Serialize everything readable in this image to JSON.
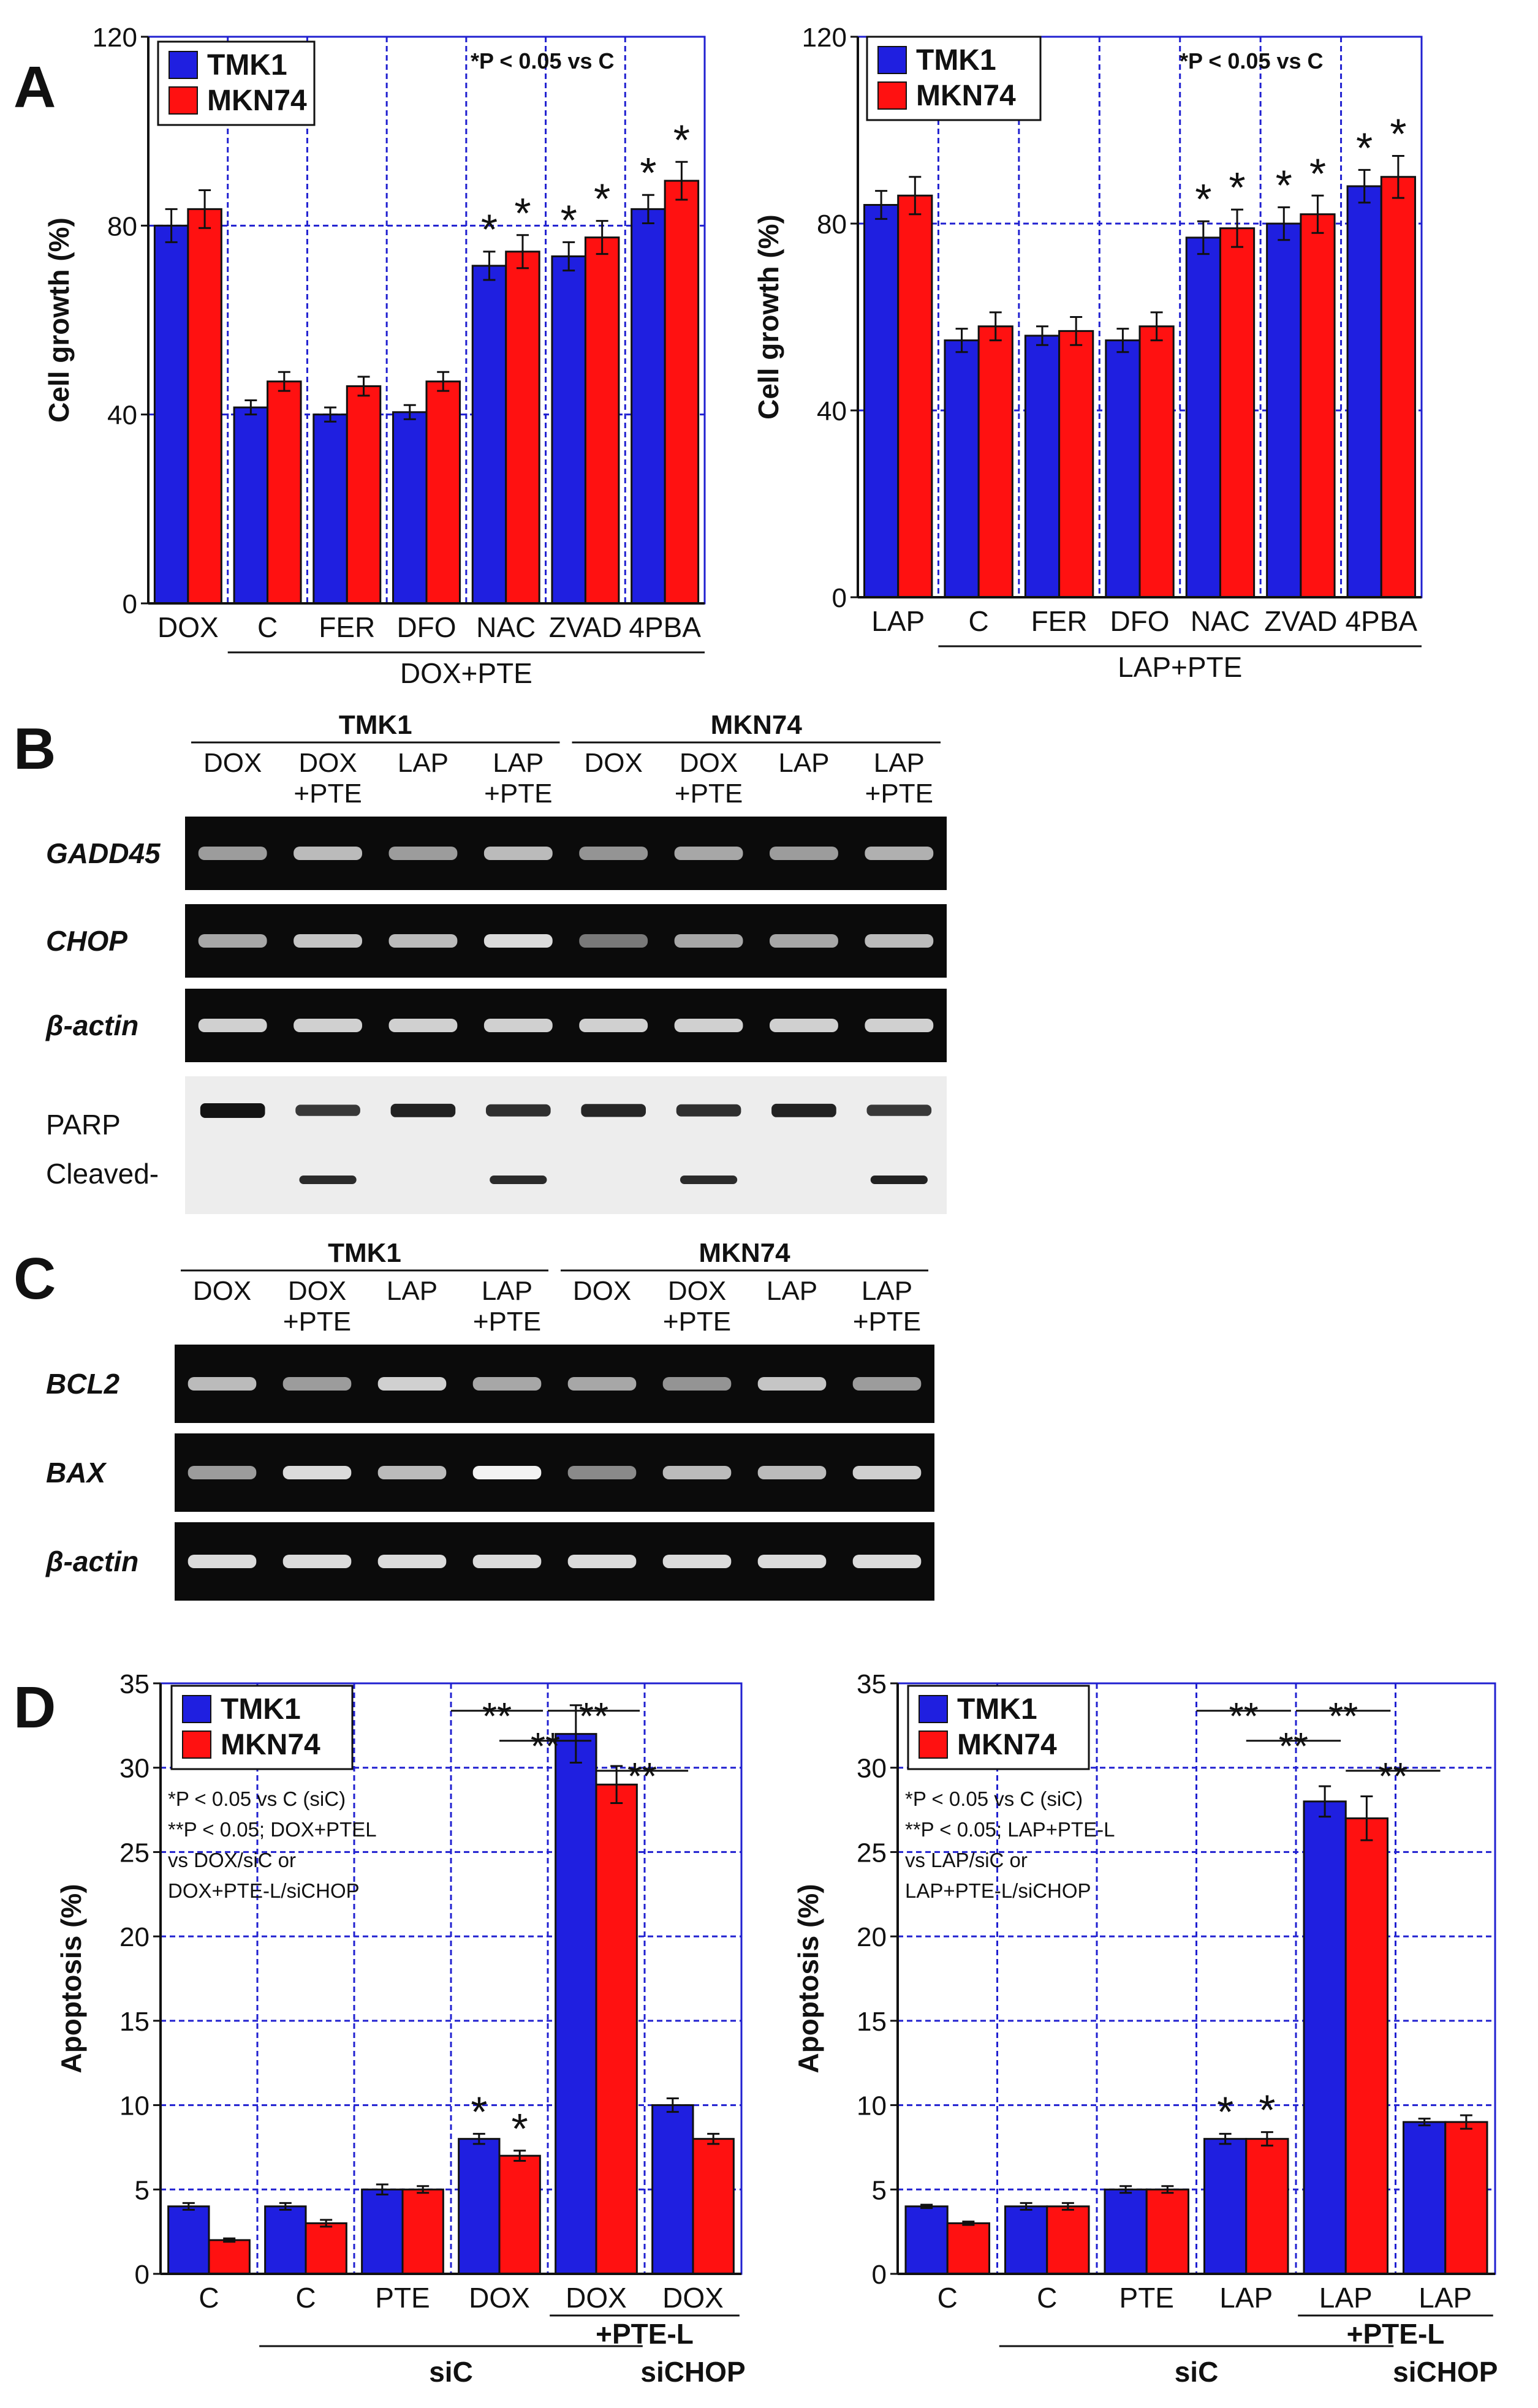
{
  "panel_letters": {
    "a": "A",
    "b": "B",
    "c": "C",
    "d": "D"
  },
  "colors": {
    "series1": "#1f1fe0",
    "series2": "#ff1111",
    "grid": "#2020d0",
    "gel_dark": "#0b0b0b",
    "gel_light": "#ededed"
  },
  "chart_data": [
    {
      "type": "bar",
      "panel": "A",
      "ylabel": "Cell growth (%)",
      "ylim": [
        0,
        120
      ],
      "yticks": [
        "0",
        "40",
        "80",
        "120"
      ],
      "categories": [
        "DOX",
        "C",
        "FER",
        "DFO",
        "NAC",
        "ZVAD",
        "4PBA"
      ],
      "series": [
        {
          "name": "TMK1",
          "values": [
            80,
            41.5,
            40,
            40.5,
            71.5,
            73.5,
            83.5
          ],
          "errors": [
            3.5,
            1.5,
            1.5,
            1.5,
            3,
            3,
            3
          ]
        },
        {
          "name": "MKN74",
          "values": [
            83.5,
            47,
            46,
            47,
            74.5,
            77.5,
            89.5
          ],
          "errors": [
            4,
            2,
            2,
            2,
            3.5,
            3.5,
            4
          ]
        }
      ],
      "significance": [
        "",
        "",
        "",
        "",
        "*",
        "*",
        "*"
      ],
      "legend": "top-left",
      "note": "*P < 0.05 vs C",
      "group_label": "DOX+PTE"
    },
    {
      "type": "bar",
      "panel": "A",
      "ylabel": "Cell growth (%)",
      "ylim": [
        0,
        120
      ],
      "yticks": [
        "0",
        "40",
        "80",
        "120"
      ],
      "categories": [
        "LAP",
        "C",
        "FER",
        "DFO",
        "NAC",
        "ZVAD",
        "4PBA"
      ],
      "series": [
        {
          "name": "TMK1",
          "values": [
            84,
            55,
            56,
            55,
            77,
            80,
            88
          ],
          "errors": [
            3,
            2.5,
            2,
            2.5,
            3.5,
            3.5,
            3.5
          ]
        },
        {
          "name": "MKN74",
          "values": [
            86,
            58,
            57,
            58,
            79,
            82,
            90
          ],
          "errors": [
            4,
            3,
            3,
            3,
            4,
            4,
            4.5
          ]
        }
      ],
      "significance": [
        "",
        "",
        "",
        "",
        "*",
        "*",
        "*"
      ],
      "legend": "top-left",
      "note": "*P < 0.05 vs C",
      "group_label": "LAP+PTE"
    },
    {
      "type": "bar",
      "panel": "D",
      "ylabel": "Apoptosis (%)",
      "ylim": [
        0,
        35
      ],
      "yticks": [
        "0",
        "5",
        "10",
        "15",
        "20",
        "25",
        "30",
        "35"
      ],
      "categories": [
        "C",
        "C",
        "PTE",
        "DOX",
        "DOX",
        "DOX"
      ],
      "series": [
        {
          "name": "TMK1",
          "values": [
            4,
            4,
            5,
            8,
            32,
            10
          ],
          "errors": [
            0.2,
            0.2,
            0.3,
            0.3,
            1.7,
            0.4
          ]
        },
        {
          "name": "MKN74",
          "values": [
            2,
            3,
            5,
            7,
            29,
            8
          ],
          "errors": [
            0.1,
            0.2,
            0.2,
            0.3,
            1.1,
            0.3
          ]
        }
      ],
      "significance": [
        "",
        "",
        "",
        "*",
        "",
        ""
      ],
      "legend": "top-left",
      "notes": [
        "*P < 0.05 vs C (siC)",
        "**P < 0.05; DOX+PTEL",
        "vs DOX/siC or",
        "DOX+PTE-L/siCHOP"
      ],
      "brackets_label": "**",
      "group_label_ptel": "+PTE-L",
      "group_label_sic": "siC",
      "group_label_sichop": "siCHOP"
    },
    {
      "type": "bar",
      "panel": "D",
      "ylabel": "Apoptosis (%)",
      "ylim": [
        0,
        35
      ],
      "yticks": [
        "0",
        "5",
        "10",
        "15",
        "20",
        "25",
        "30",
        "35"
      ],
      "categories": [
        "C",
        "C",
        "PTE",
        "LAP",
        "LAP",
        "LAP"
      ],
      "series": [
        {
          "name": "TMK1",
          "values": [
            4,
            4,
            5,
            8,
            28,
            9
          ],
          "errors": [
            0.1,
            0.2,
            0.2,
            0.3,
            0.9,
            0.2
          ]
        },
        {
          "name": "MKN74",
          "values": [
            3,
            4,
            5,
            8,
            27,
            9
          ],
          "errors": [
            0.1,
            0.2,
            0.2,
            0.4,
            1.3,
            0.4
          ]
        }
      ],
      "significance": [
        "",
        "",
        "",
        "*",
        "",
        ""
      ],
      "legend": "top-left",
      "notes": [
        "*P < 0.05 vs C (siC)",
        "**P < 0.05; LAP+PTE-L",
        "vs LAP/siC or",
        "LAP+PTE-L/siCHOP"
      ],
      "brackets_label": "**",
      "group_label_ptel": "+PTE-L",
      "group_label_sic": "siC",
      "group_label_sichop": "siCHOP"
    }
  ],
  "gels": {
    "panel_b": {
      "cell_lines": [
        "TMK1",
        "MKN74"
      ],
      "lanes": [
        [
          "DOX",
          ""
        ],
        [
          "DOX",
          "+PTE"
        ],
        [
          "LAP",
          ""
        ],
        [
          "LAP",
          "+PTE"
        ],
        [
          "DOX",
          ""
        ],
        [
          "DOX",
          "+PTE"
        ],
        [
          "LAP",
          ""
        ],
        [
          "LAP",
          "+PTE"
        ]
      ],
      "rows": [
        {
          "label": "GADD45",
          "intensity": [
            0.55,
            0.7,
            0.55,
            0.7,
            0.5,
            0.6,
            0.55,
            0.65
          ]
        },
        {
          "label": "CHOP",
          "intensity": [
            0.6,
            0.75,
            0.7,
            0.85,
            0.35,
            0.6,
            0.6,
            0.7
          ]
        },
        {
          "label": "β-actin",
          "intensity": [
            0.8,
            0.8,
            0.8,
            0.8,
            0.8,
            0.8,
            0.8,
            0.8
          ]
        }
      ],
      "western": {
        "label_full": "PARP",
        "label_cleaved": "Cleaved-",
        "full": [
          1.0,
          0.6,
          0.85,
          0.7,
          0.8,
          0.7,
          0.85,
          0.6
        ],
        "cleaved": [
          0,
          0.75,
          0,
          0.75,
          0,
          0.75,
          0,
          0.85
        ]
      }
    },
    "panel_c": {
      "cell_lines": [
        "TMK1",
        "MKN74"
      ],
      "lanes": [
        [
          "DOX",
          ""
        ],
        [
          "DOX",
          "+PTE"
        ],
        [
          "LAP",
          ""
        ],
        [
          "LAP",
          "+PTE"
        ],
        [
          "DOX",
          ""
        ],
        [
          "DOX",
          "+PTE"
        ],
        [
          "LAP",
          ""
        ],
        [
          "LAP",
          "+PTE"
        ]
      ],
      "rows": [
        {
          "label": "BCL2",
          "intensity": [
            0.7,
            0.55,
            0.8,
            0.6,
            0.6,
            0.5,
            0.75,
            0.55
          ]
        },
        {
          "label": "BAX",
          "intensity": [
            0.55,
            0.85,
            0.7,
            0.95,
            0.45,
            0.7,
            0.7,
            0.8
          ]
        },
        {
          "label": "β-actin",
          "intensity": [
            0.85,
            0.85,
            0.85,
            0.85,
            0.85,
            0.85,
            0.85,
            0.85
          ]
        }
      ]
    }
  }
}
